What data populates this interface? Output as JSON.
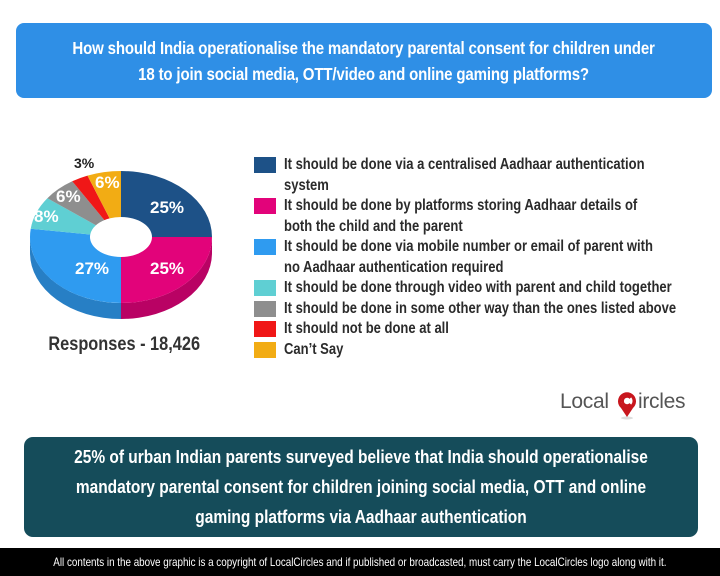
{
  "title": "How should India operationalise the mandatory parental consent for children under\n18 to join social media, OTT/video and online gaming platforms?",
  "responses_label": "Responses - 18,426",
  "legend": [
    {
      "label": "It should be done via a centralised Aadhaar authentication\nsystem",
      "color": "#1d5187"
    },
    {
      "label": "It should be done by platforms storing Aadhaar details of\nboth the child and the parent",
      "color": "#e2037a"
    },
    {
      "label": "It should be done via mobile number or email of parent with\nno Aadhaar authentication required",
      "color": "#2f9bf0"
    },
    {
      "label": "It should be done through video with parent and child together",
      "color": "#5fcfd3"
    },
    {
      "label": "It should be done in some other way than the ones listed above",
      "color": "#8e8e8e"
    },
    {
      "label": "It should not be done at all",
      "color": "#f01717"
    },
    {
      "label": "Can’t Say",
      "color": "#f2ac14"
    }
  ],
  "pie_labels": [
    "25%",
    "25%",
    "27%",
    "8%",
    "6%",
    "3%",
    "6%"
  ],
  "logo": {
    "left": "Local",
    "right": "ircles"
  },
  "summary": "25% of urban Indian parents surveyed believe that India should operationalise\nmandatory parental consent for children joining social media, OTT and online\ngaming platforms via Aadhaar authentication",
  "footer": "All contents in the above graphic is a copyright of LocalCircles and if published or broadcasted, must carry the LocalCircles logo along with it.",
  "chart_data": {
    "type": "pie",
    "title": "How should India operationalise the mandatory parental consent for children under 18 to join social media, OTT/video and online gaming platforms?",
    "subtitle": "Responses - 18,426",
    "categories": [
      "It should be done via a centralised Aadhaar authentication system",
      "It should be done by platforms storing Aadhaar details of both the child and the parent",
      "It should be done via mobile number or email of parent with no Aadhaar authentication required",
      "It should be done through video with parent and child together",
      "It should be done in some other way than the ones listed above",
      "It should not be done at all",
      "Can’t Say"
    ],
    "values": [
      25,
      25,
      27,
      8,
      6,
      3,
      6
    ],
    "colors": [
      "#1d5187",
      "#e2037a",
      "#2f9bf0",
      "#5fcfd3",
      "#8e8e8e",
      "#f01717",
      "#f2ac14"
    ],
    "unit": "%",
    "donut": true,
    "legend_position": "right",
    "total_responses": 18426
  }
}
